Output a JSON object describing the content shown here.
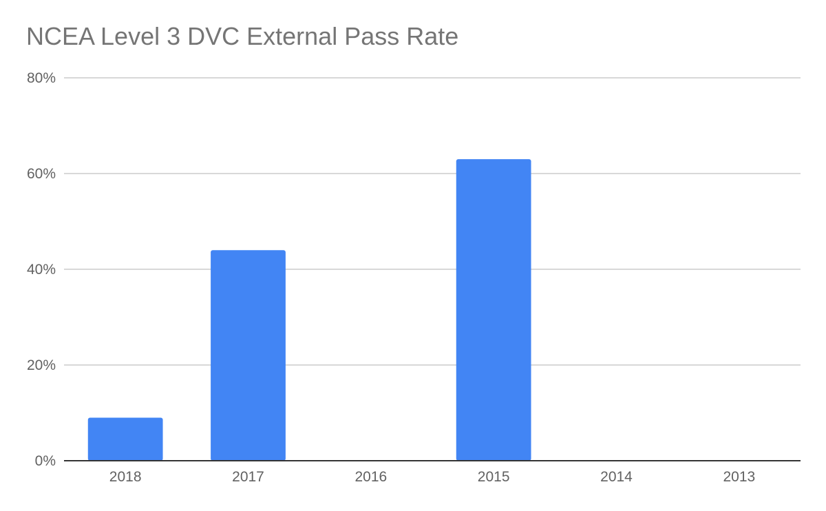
{
  "chart_data": {
    "type": "bar",
    "title": "NCEA Level 3 DVC External Pass Rate",
    "xlabel": "",
    "ylabel": "",
    "categories": [
      "2018",
      "2017",
      "2016",
      "2015",
      "2014",
      "2013"
    ],
    "values": [
      0.09,
      0.44,
      0,
      0.63,
      0,
      0
    ],
    "ylim": [
      0,
      0.8
    ],
    "yticks": [
      "0%",
      "20%",
      "40%",
      "60%",
      "80%"
    ],
    "grid": true,
    "legend": "none",
    "colors": {
      "bar": "#4285f4",
      "grid": "#cccccc",
      "axis": "#333333",
      "text": "#616161",
      "title": "#757575"
    }
  }
}
